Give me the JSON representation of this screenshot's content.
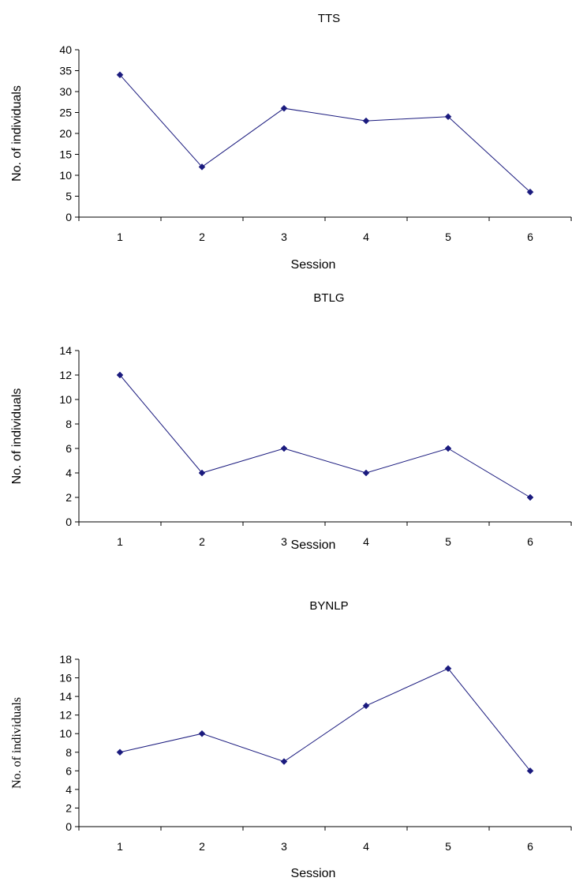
{
  "chart_data": [
    {
      "type": "line",
      "title": "TTS",
      "xlabel": "Session",
      "ylabel": "No. of individuals",
      "categories": [
        "1",
        "2",
        "3",
        "4",
        "5",
        "6"
      ],
      "yticks": [
        "0",
        "5",
        "10",
        "15",
        "20",
        "25",
        "30",
        "35",
        "40"
      ],
      "ylim": [
        0,
        40
      ],
      "series": [
        {
          "values": [
            34,
            12,
            26,
            23,
            24,
            6
          ]
        }
      ],
      "color": "#1a1a7e",
      "grid": false,
      "legend": "none"
    },
    {
      "type": "line",
      "title": "BTLG",
      "xlabel": "Session",
      "ylabel": "No. of individuals",
      "categories": [
        "1",
        "2",
        "3",
        "4",
        "5",
        "6"
      ],
      "yticks": [
        "0",
        "2",
        "4",
        "6",
        "8",
        "10",
        "12",
        "14"
      ],
      "ylim": [
        0,
        14
      ],
      "series": [
        {
          "values": [
            12,
            4,
            6,
            4,
            6,
            2
          ]
        }
      ],
      "color": "#1a1a7e",
      "grid": false,
      "legend": "none"
    },
    {
      "type": "line",
      "title": "BYNLP",
      "xlabel": "Session",
      "ylabel": "No. of individuals",
      "categories": [
        "1",
        "2",
        "3",
        "4",
        "5",
        "6"
      ],
      "yticks": [
        "0",
        "2",
        "4",
        "6",
        "8",
        "10",
        "12",
        "14",
        "16",
        "18"
      ],
      "ylim": [
        0,
        18
      ],
      "series": [
        {
          "values": [
            8,
            10,
            7,
            13,
            17,
            6
          ]
        }
      ],
      "color": "#1a1a7e",
      "grid": false,
      "legend": "none"
    }
  ]
}
